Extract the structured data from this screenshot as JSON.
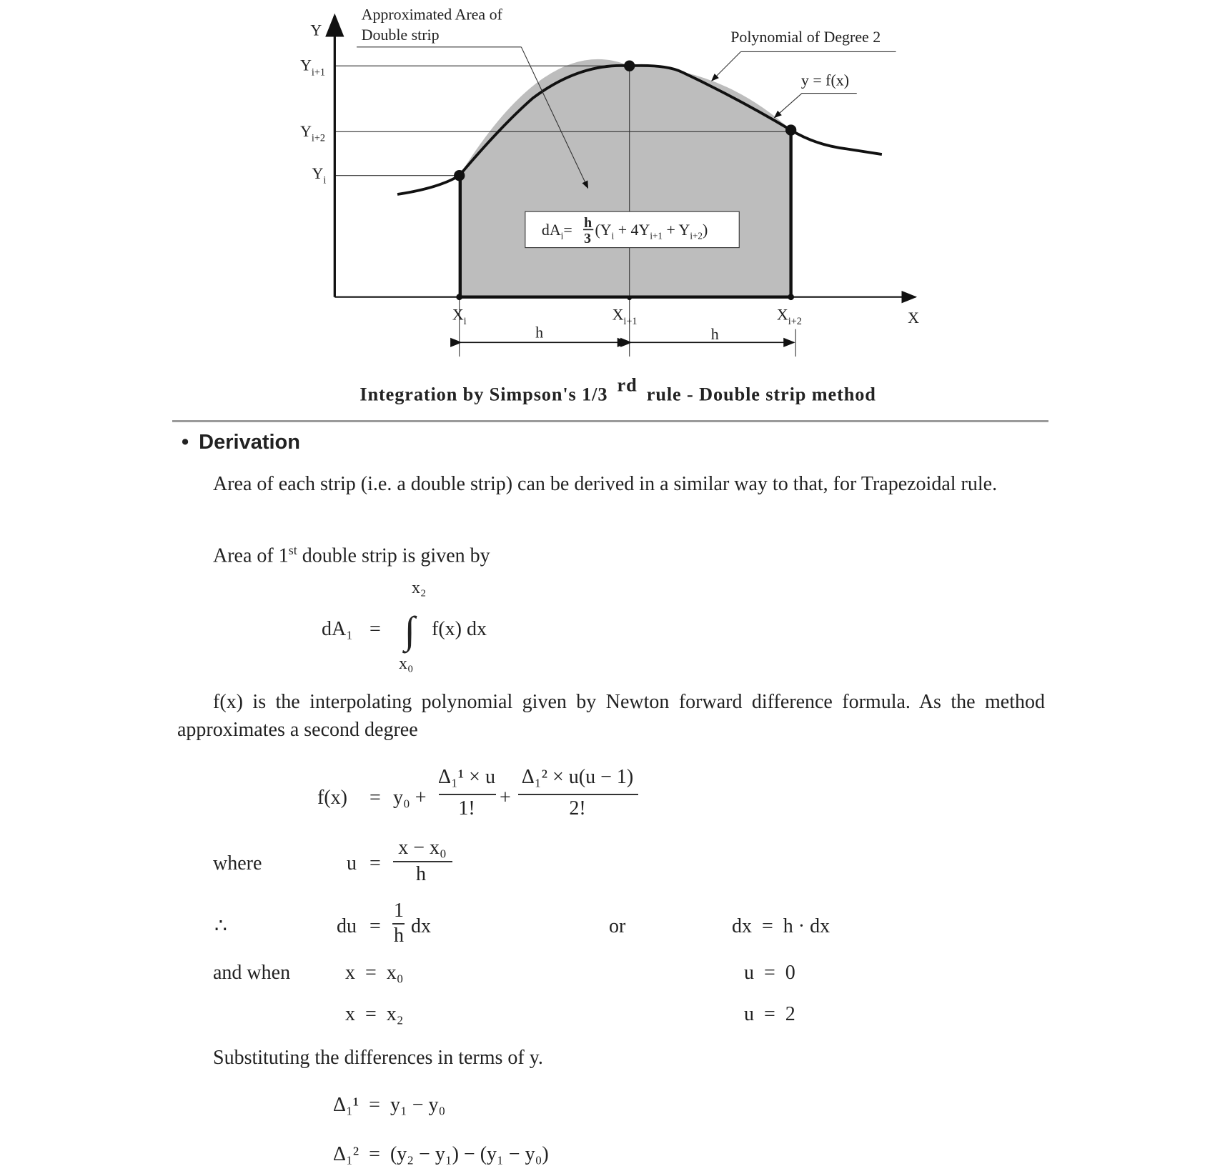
{
  "figure": {
    "axis_y": "Y",
    "axis_x": "X",
    "y_ticks": [
      "Y",
      "Y"
    ],
    "y_labels": [
      {
        "main": "Y",
        "sub": "i+1"
      },
      {
        "main": "Y",
        "sub": "i+2"
      },
      {
        "main": "Y",
        "sub": "i"
      }
    ],
    "x_labels": [
      {
        "main": "X",
        "sub": "i"
      },
      {
        "main": "X",
        "sub": "i+1"
      },
      {
        "main": "X",
        "sub": "i+2"
      }
    ],
    "h_label": "h",
    "annotation_area_line1": "Approximated Area of",
    "annotation_area_line2": "Double strip",
    "annotation_poly": "Polynomial of Degree 2",
    "annotation_fx": "y = f(x)",
    "formula": {
      "lhs": "dA",
      "lhs_sub": "i",
      "eq": "=",
      "num": "h",
      "den": "3",
      "rest": "(Y",
      "s1": "i",
      "plus4": " + 4Y",
      "s2": "i+1",
      "plusY": " + Y",
      "s3": "i+2",
      "close": ")"
    },
    "fill_color": "#bdbdbd",
    "caption_pre": "Integration by Simpson's 1/3",
    "caption_sup": "rd",
    "caption_post": "rule - Double strip method"
  },
  "section": {
    "bullet": "•",
    "heading": "Derivation",
    "para1": "Area of each strip (i.e. a double strip) can be derived in a similar way to that, for Trapezoidal rule.",
    "para2_pre": "Area of 1",
    "para2_sup": "st",
    "para2_post": " double strip is given by",
    "integral": {
      "lhs": "dA₁",
      "eq": "=",
      "sign": "∫",
      "upper": "x₂",
      "lower": "x₀",
      "integrand": "f(x) dx"
    },
    "para3": "f(x) is the interpolating polynomial given by Newton forward difference formula. As the method approximates a second degree",
    "fx_eq": {
      "lhs": "f(x)",
      "eq": "=",
      "y0": "y₀ +",
      "num1": "Δ₁¹ × u",
      "den1": "1!",
      "plus": "+",
      "num2": "Δ₁² × u(u − 1)",
      "den2": "2!"
    },
    "where": {
      "label": "where",
      "lhs": "u",
      "eq": "=",
      "num": "x − x₀",
      "den": "h"
    },
    "therefore": {
      "label": "∴",
      "lhs": "du",
      "eq": "=",
      "num": "1",
      "den": "h",
      "rest": "dx",
      "or": "or",
      "alt": "dx  =  h · dx"
    },
    "and_when": {
      "label": "and when",
      "x1": "x  =  x₀",
      "u1": "u  =  0",
      "x2": "x  =  x₂",
      "u2": "u  =  2"
    },
    "substituting": "Substituting the differences in terms of y.",
    "delta1": "Δ₁¹  =  y₁ − y₀",
    "delta2": "Δ₁²  =  (y₂ − y₁) − (y₁ − y₀)"
  }
}
